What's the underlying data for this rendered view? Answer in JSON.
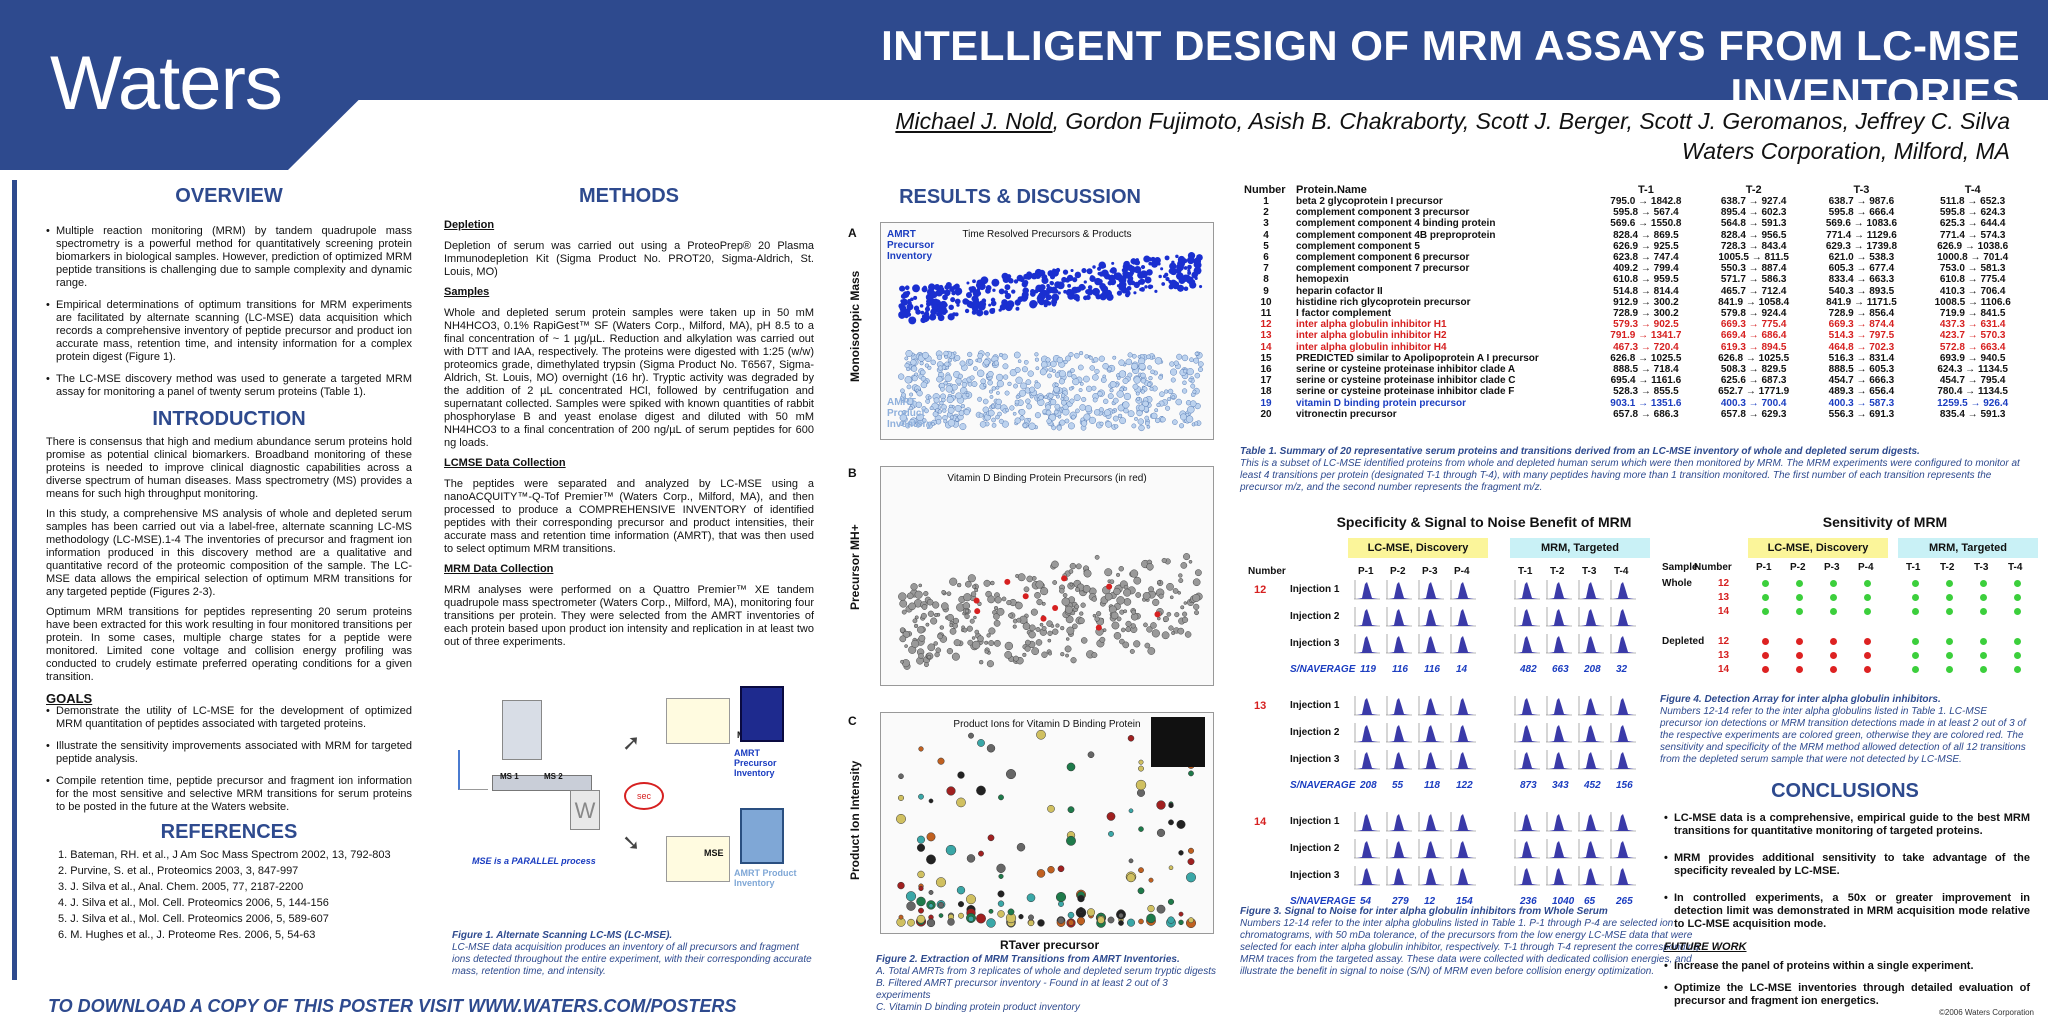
{
  "header": {
    "logo": "Waters",
    "title": "INTELLIGENT DESIGN OF MRM ASSAYS FROM LC-MSE INVENTORIES",
    "authors_first": "Michael J. Nold",
    "authors_rest": ", Gordon Fujimoto, Asish B. Chakraborty, Scott J. Berger, Scott J. Geromanos, Jeffrey C. Silva",
    "affiliation": "Waters Corporation, Milford, MA"
  },
  "overview": {
    "heading": "OVERVIEW",
    "bullets": [
      "Multiple reaction monitoring (MRM) by tandem quadrupole mass spectrometry is a powerful method for quantitatively screening protein biomarkers in biological samples. However, prediction of optimized MRM peptide transitions is challenging due to sample complexity and dynamic range.",
      "Empirical determinations of optimum transitions for MRM experiments are facilitated by alternate scanning (LC-MSE) data acquisition which records a comprehensive inventory of peptide precursor and product ion accurate mass, retention time, and intensity information for a complex protein digest (Figure 1).",
      "The LC-MSE discovery method was used to generate a targeted MRM assay for monitoring a panel of twenty serum proteins (Table 1)."
    ]
  },
  "introduction": {
    "heading": "INTRODUCTION",
    "paras": [
      "There is consensus that high and medium abundance serum proteins hold promise as potential clinical biomarkers. Broadband monitoring of these proteins is needed to improve clinical diagnostic capabilities across a diverse spectrum of human diseases. Mass spectrometry (MS) provides a means for such high throughput monitoring.",
      "In this study, a comprehensive MS analysis of whole and depleted serum samples has been carried out via a label-free, alternate scanning LC-MS methodology (LC-MSE).1-4 The inventories of precursor and fragment ion information produced in this discovery method are a qualitative and quantitative record of the proteomic composition of the sample. The LC-MSE data allows the empirical selection of optimum MRM transitions for any targeted peptide (Figures 2-3).",
      "Optimum MRM transitions for peptides representing 20 serum proteins have been extracted for this work resulting in four monitored transitions per protein. In some cases, multiple charge states for a peptide were monitored. Limited cone voltage and collision energy profiling was conducted to crudely estimate preferred operating conditions for a given transition."
    ],
    "goals_heading": "GOALS",
    "goals": [
      "Demonstrate the utility of LC-MSE for the development of optimized MRM quantitation of peptides associated with targeted proteins.",
      "Illustrate the sensitivity improvements associated with MRM for targeted peptide analysis.",
      "Compile retention time, peptide precursor and fragment ion information for the most sensitive and selective MRM transitions for serum proteins to be posted in the future at the Waters website."
    ]
  },
  "references": {
    "heading": "REFERENCES",
    "items": [
      "1. Bateman, RH. et al., J Am Soc Mass Spectrom 2002, 13, 792-803",
      "2. Purvine, S. et al., Proteomics 2003, 3, 847-997",
      "3. J. Silva et al., Anal. Chem. 2005, 77, 2187-2200",
      "4. J. Silva et al., Mol. Cell. Proteomics 2006, 5, 144-156",
      "5. J. Silva et al., Mol. Cell. Proteomics 2006, 5, 589-607",
      "6. M. Hughes et al., J. Proteome Res. 2006, 5, 54-63"
    ]
  },
  "methods": {
    "heading": "METHODS",
    "sections": [
      {
        "title": "Depletion",
        "text": "Depletion of serum was carried out using a ProteoPrep® 20 Plasma Immunodepletion Kit (Sigma Product No. PROT20, Sigma-Aldrich, St. Louis, MO)"
      },
      {
        "title": "Samples",
        "text": "Whole and depleted serum protein samples were taken up in 50 mM NH4HCO3, 0.1% RapiGest™ SF (Waters Corp., Milford, MA), pH 8.5 to a final concentration of ~ 1 µg/µL. Reduction and alkylation was carried out with DTT and IAA, respectively. The proteins were digested with 1:25 (w/w) proteomics grade, dimethylated trypsin (Sigma Product No. T6567, Sigma-Aldrich, St. Louis, MO) overnight (16 hr). Tryptic activity was degraded by the addition of 2 µL concentrated HCl, followed by centrifugation and supernatant collected. Samples were spiked with known quantities of rabbit phosphorylase B and yeast enolase digest and diluted with 50 mM NH4HCO3 to a final concentration of 200 ng/µL of serum peptides for 600 ng loads."
      },
      {
        "title": "LCMSE Data Collection",
        "text": "The peptides were separated and analyzed by LC-MSE using a nanoACQUITY™-Q-Tof Premier™ (Waters Corp., Milford, MA), and then processed to produce a COMPREHENSIVE INVENTORY of identified peptides with their corresponding precursor and product intensities, their accurate mass and retention time information (AMRT), that was then used to select optimum MRM transitions."
      },
      {
        "title": "MRM Data Collection",
        "text": "MRM analyses were performed on a Quattro Premier™ XE tandem quadrupole mass spectrometer (Waters Corp., Milford, MA), monitoring four transitions per protein. They were selected from the AMRT inventories of each protein based upon product ion intensity and replication in at least two out of three experiments."
      }
    ],
    "diagram": {
      "ms1": "MS 1",
      "ms2": "MS 2",
      "ms": "MS",
      "mse": "MSE",
      "sec": "sec",
      "precursor_inv": "AMRT Precursor Inventory",
      "product_inv": "AMRT Product Inventory",
      "parallel": "MSE is a PARALLEL process"
    },
    "fig1_title": "Figure 1. Alternate Scanning LC-MS (LC-MSE).",
    "fig1_text": "LC-MSE data acquisition produces an inventory of all precursors and fragment ions detected throughout the entire experiment, with their corresponding accurate mass, retention time, and intensity."
  },
  "results": {
    "heading": "RESULTS & DISCUSSION",
    "panelA": {
      "label": "A",
      "title": "Time Resolved Precursors & Products",
      "ylabel": "Monoisotopic Mass",
      "legend1": "AMRT Precursor Inventory",
      "legend2": "AMRT Product Inventory"
    },
    "panelB": {
      "label": "B",
      "title": "Vitamin D Binding Protein Precursors (in red)",
      "ylabel": "Precursor MH+"
    },
    "panelC": {
      "label": "C",
      "title": "Product Ions for Vitamin D Binding Protein",
      "ylabel": "Product Ion Intensity"
    },
    "xlabel": "RTaver precursor",
    "fig2_title": "Figure 2. Extraction of MRM Transitions from AMRT Inventories.",
    "fig2_lines": [
      "A. Total AMRTs from 3 replicates of whole and depleted serum tryptic digests",
      "B. Filtered AMRT precursor inventory - Found in at least 2 out of 3 experiments",
      "C. Vitamin D binding protein product inventory"
    ]
  },
  "table1": {
    "headers": [
      "Number",
      "Protein.Name",
      "T-1",
      "T-2",
      "T-3",
      "T-4"
    ],
    "rows": [
      [
        "1",
        "beta 2 glycoprotein I precursor",
        "795.0 → 1842.8",
        "638.7 → 927.4",
        "638.7 → 987.6",
        "511.8 → 652.3"
      ],
      [
        "2",
        "complement component 3 precursor",
        "595.8 → 567.4",
        "895.4 → 602.3",
        "595.8 → 666.4",
        "595.8 → 624.3"
      ],
      [
        "3",
        "complement component 4 binding protein",
        "569.6 → 1550.8",
        "564.8 → 591.3",
        "569.6 → 1083.6",
        "625.3 → 644.4"
      ],
      [
        "4",
        "complement component 4B preproprotein",
        "828.4 → 869.5",
        "828.4 → 956.5",
        "771.4 → 1129.6",
        "771.4 → 574.3"
      ],
      [
        "5",
        "complement component 5",
        "626.9 → 925.5",
        "728.3 → 843.4",
        "629.3 → 1739.8",
        "626.9 → 1038.6"
      ],
      [
        "6",
        "complement component 6 precursor",
        "623.8 → 747.4",
        "1005.5 → 811.5",
        "621.0 → 538.3",
        "1000.8 → 701.4"
      ],
      [
        "7",
        "complement component 7 precursor",
        "409.2 → 799.4",
        "550.3 → 887.4",
        "605.3 → 677.4",
        "753.0 → 581.3"
      ],
      [
        "8",
        "hemopexin",
        "610.8 → 959.5",
        "571.7 → 586.3",
        "833.4 → 663.3",
        "610.8 → 775.4"
      ],
      [
        "9",
        "heparin cofactor II",
        "514.8 → 814.4",
        "465.7 → 712.4",
        "540.3 → 893.5",
        "410.3 → 706.4"
      ],
      [
        "10",
        "histidine rich glycoprotein precursor",
        "912.9 → 300.2",
        "841.9 → 1058.4",
        "841.9 → 1171.5",
        "1008.5 → 1106.6"
      ],
      [
        "11",
        "I factor complement",
        "728.9 → 300.2",
        "579.8 → 924.4",
        "728.9 → 856.4",
        "719.9 → 841.5"
      ],
      [
        "12",
        "inter alpha globulin inhibitor H1",
        "579.3 → 902.5",
        "669.3 → 775.4",
        "669.3 → 874.4",
        "437.3 → 631.4"
      ],
      [
        "13",
        "inter alpha globulin inhibitor H2",
        "791.9 → 1341.7",
        "669.4 → 686.4",
        "514.3 → 797.5",
        "423.7 → 570.3"
      ],
      [
        "14",
        "inter alpha globulin inhibitor H4",
        "467.3 → 720.4",
        "619.3 → 894.5",
        "464.8 → 702.3",
        "572.8 → 663.4"
      ],
      [
        "15",
        "PREDICTED similar to Apolipoprotein A I precursor",
        "626.8 → 1025.5",
        "626.8 → 1025.5",
        "516.3 → 831.4",
        "693.9 → 940.5"
      ],
      [
        "16",
        "serine or cysteine proteinase inhibitor clade A",
        "888.5 → 718.4",
        "508.3 → 829.5",
        "888.5 → 605.3",
        "624.3 → 1134.5"
      ],
      [
        "17",
        "serine or cysteine proteinase inhibitor clade C",
        "695.4 → 1161.6",
        "625.6 → 687.3",
        "454.7 → 666.3",
        "454.7 → 795.4"
      ],
      [
        "18",
        "serine or cysteine proteinase inhibitor clade F",
        "528.3 → 855.5",
        "652.7 → 1771.9",
        "489.3 → 656.4",
        "780.4 → 1134.5"
      ],
      [
        "19",
        "vitamin D binding protein precursor",
        "903.1 → 1351.6",
        "400.3 → 700.4",
        "400.3 → 587.3",
        "1259.5 → 926.4"
      ],
      [
        "20",
        "vitronectin precursor",
        "657.8 → 686.3",
        "657.8 → 629.3",
        "556.3 → 691.3",
        "835.4 → 591.3"
      ]
    ],
    "caption_title": "Table 1. Summary of 20 representative serum proteins and transitions derived from an LC-MSE inventory of whole and depleted serum digests.",
    "caption_text": "This is a subset of LC-MSE identified proteins from whole and depleted human serum which were then monitored by MRM. The MRM experiments were configured to monitor at least 4 transitions per protein (designated T-1 through T-4), with many peptides having more than 1 transition monitored. The first number of each transition represents the precursor m/z, and the second number represents the fragment m/z."
  },
  "specificity": {
    "heading": "Specificity & Signal to Noise Benefit of MRM",
    "discovery_label": "LC-MSE, Discovery",
    "targeted_label": "MRM, Targeted",
    "number_label": "Number",
    "p_cols": [
      "P-1",
      "P-2",
      "P-3",
      "P-4"
    ],
    "t_cols": [
      "T-1",
      "T-2",
      "T-3",
      "T-4"
    ],
    "injections": [
      "Injection 1",
      "Injection 2",
      "Injection 3"
    ],
    "sn_label": "S/NAVERAGE",
    "groups": [
      {
        "number": "12",
        "sn": [
          "119",
          "116",
          "116",
          "14",
          "482",
          "663",
          "208",
          "32"
        ]
      },
      {
        "number": "13",
        "sn": [
          "208",
          "55",
          "118",
          "122",
          "873",
          "343",
          "452",
          "156"
        ]
      },
      {
        "number": "14",
        "sn": [
          "54",
          "279",
          "12",
          "154",
          "236",
          "1040",
          "65",
          "265"
        ]
      }
    ],
    "fig3_title": "Figure 3. Signal to Noise for inter alpha globulin inhibitors from Whole Serum",
    "fig3_text": "Numbers 12-14 refer to the inter alpha globulins listed in Table 1. P-1 through P-4 are selected ion chromatograms, with 50 mDa tolerance, of the precursors from the low energy LC-MSE data that were selected for each inter alpha globulin inhibitor, respectively. T-1 through T-4 represent the corresponding MRM traces from the targeted assay. These data were collected with dedicated collision energies, and illustrate the benefit in signal to noise (S/N) of MRM even before collision energy optimization."
  },
  "sensitivity": {
    "heading": "Sensitivity of MRM",
    "sample_label": "Sample",
    "number_label": "Number",
    "whole": "Whole",
    "depleted": "Depleted",
    "numbers": [
      "12",
      "13",
      "14"
    ],
    "whole_colors": [
      "#3ccf3c",
      "#3ccf3c",
      "#3ccf3c",
      "#3ccf3c",
      "#3ccf3c",
      "#3ccf3c",
      "#3ccf3c",
      "#3ccf3c"
    ],
    "depleted_colors": [
      "#dd2222",
      "#dd2222",
      "#dd2222",
      "#dd2222",
      "#3ccf3c",
      "#3ccf3c",
      "#3ccf3c",
      "#3ccf3c"
    ],
    "fig4_title": "Figure 4. Detection Array for inter alpha globulin inhibitors.",
    "fig4_text": "Numbers 12-14 refer to the inter alpha globulins listed in Table 1. LC-MSE precursor ion detections or MRM transition detections made in at least 2 out of 3 of the respective experiments are colored green, otherwise they are colored red. The sensitivity and specificity of the MRM method allowed detection of all 12 transitions from the depleted serum sample that were not detected by LC-MSE."
  },
  "conclusions": {
    "heading": "CONCLUSIONS",
    "bullets": [
      "LC-MSE data is a comprehensive, empirical guide to the best MRM transitions for quantitative monitoring of targeted proteins.",
      "MRM provides additional sensitivity to take advantage of the specificity revealed by LC-MSE.",
      "In controlled experiments, a 50x or greater improvement in detection limit was demonstrated in MRM acquisition mode relative to LC-MSE acquisition mode."
    ],
    "future_heading": "FUTURE WORK",
    "future": [
      "Increase the panel of proteins within a single experiment.",
      "Optimize the LC-MSE inventories through detailed evaluation of precursor and fragment ion energetics."
    ]
  },
  "footer": "TO DOWNLOAD A COPY OF THIS POSTER VISIT WWW.WATERS.COM/POSTERS",
  "copyright": "©2006 Waters Corporation",
  "colors": {
    "brand": "#2e4a8e",
    "red": "#d62020",
    "blue": "#1a3cc0",
    "green": "#3ccf3c"
  }
}
